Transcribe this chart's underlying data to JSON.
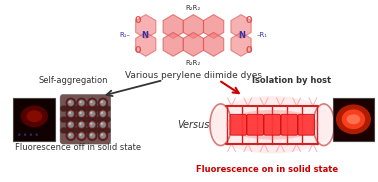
{
  "title": "Various perylene diimide dyes",
  "left_label": "Self-aggregation",
  "versus_text": "Versus",
  "right_label": "Isolation by host",
  "bottom_left_text": "Fluorescence off in solid state",
  "bottom_right_text": "Fluorescence on in solid state",
  "bg_color": "#ffffff",
  "mol_color": "#f08080",
  "mol_edge_color": "#e05050",
  "atom_N_color": "#3333aa",
  "atom_O_color": "#e05050",
  "text_color_black": "#333333",
  "text_color_red": "#cc0000",
  "arrow_left_color": "#333333",
  "arrow_right_color": "#cc0000",
  "host_color": "#cc2222",
  "host_pink": "#f0a0a0"
}
